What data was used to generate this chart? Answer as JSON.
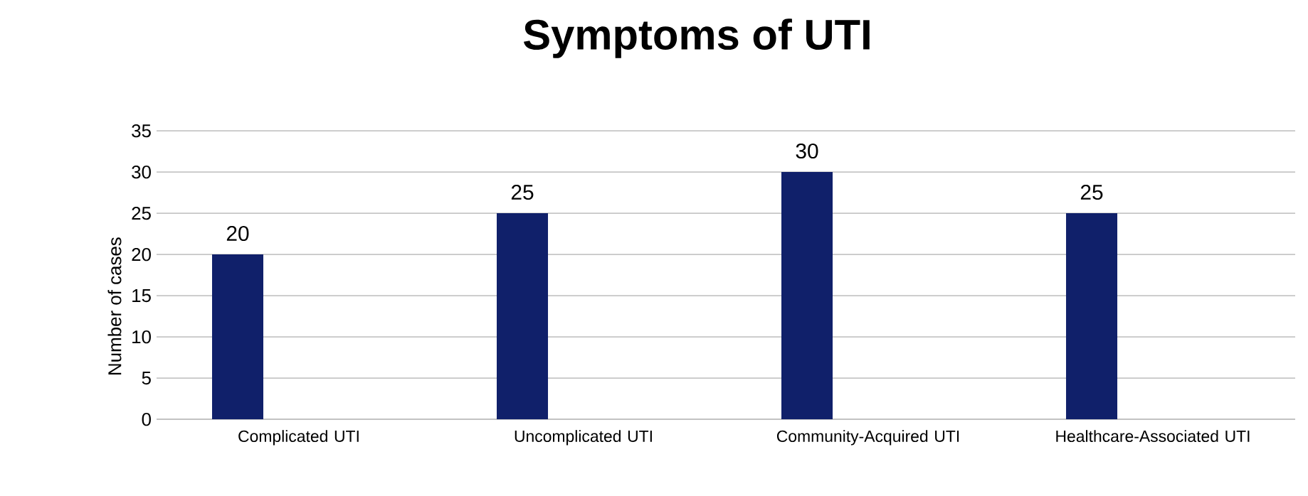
{
  "chart_data": {
    "type": "bar",
    "title": "Symptoms of UTI",
    "ylabel": "Number of cases",
    "categories": [
      "Complicated UTI",
      "Uncomplicated UTI",
      "Community-Acquired UTI",
      "Healthcare-Associated UTI"
    ],
    "values": [
      20,
      25,
      30,
      25
    ],
    "color": "#10206a",
    "ylim": [
      0,
      35
    ],
    "yticks": [
      0,
      5,
      10,
      15,
      20,
      25,
      30,
      35
    ],
    "grid": "y",
    "data_labels": true
  }
}
